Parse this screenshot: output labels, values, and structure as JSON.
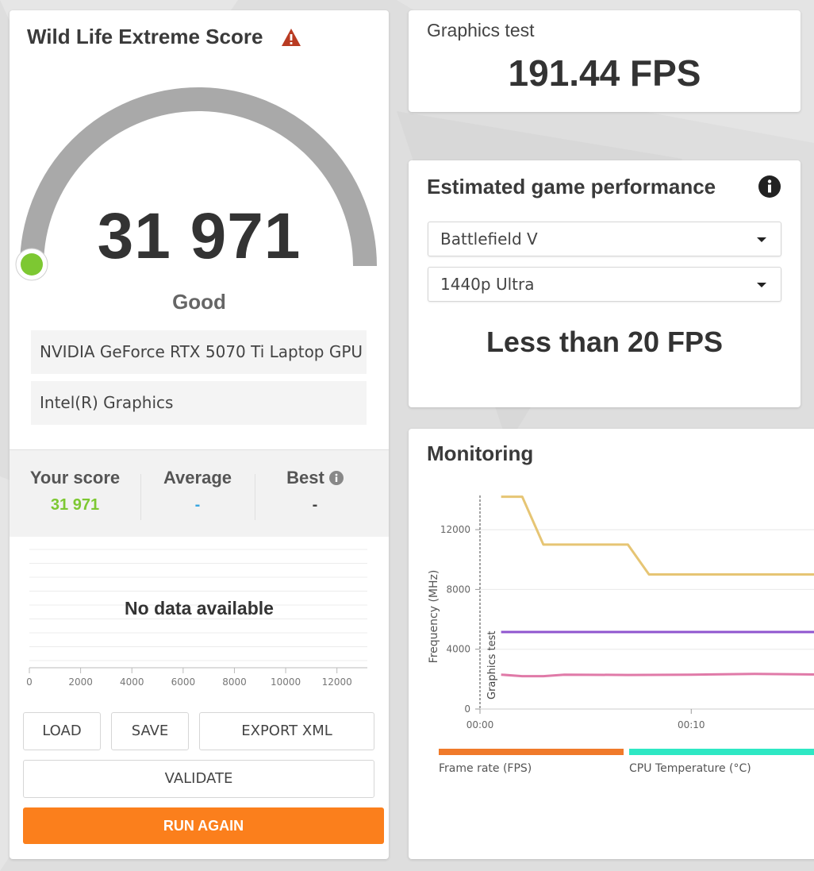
{
  "score_card": {
    "title": "Wild Life Extreme Score",
    "score": "31 971",
    "gauge_fraction": 0.0,
    "rating": "Good",
    "devices": [
      "NVIDIA GeForce RTX 5070 Ti Laptop GPU",
      "Intel(R) Graphics"
    ],
    "stats": {
      "your_score_label": "Your score",
      "your_score_value": "31 971",
      "average_label": "Average",
      "average_value": "-",
      "best_label": "Best",
      "best_value": "-"
    },
    "histogram": {
      "no_data": "No data available",
      "ticks": [
        "0",
        "2000",
        "4000",
        "6000",
        "8000",
        "10000",
        "12000"
      ]
    },
    "buttons": {
      "load": "LOAD",
      "save": "SAVE",
      "export_xml": "EXPORT XML",
      "validate": "VALIDATE",
      "run_again": "RUN AGAIN"
    },
    "colors": {
      "accent": "#fb7f1c",
      "good": "#7dc832",
      "gauge": "#a9a9a9"
    }
  },
  "graphics_test": {
    "label": "Graphics test",
    "value": "191.44 FPS"
  },
  "estimated": {
    "title": "Estimated game performance",
    "game": "Battlefield V",
    "preset": "1440p Ultra",
    "result": "Less than 20 FPS"
  },
  "monitoring": {
    "title": "Monitoring",
    "chart_data": {
      "type": "line",
      "ylabel": "Frequency (MHz)",
      "yticks": [
        0,
        4000,
        8000,
        12000
      ],
      "ylim": [
        0,
        14500
      ],
      "xticks": [
        "00:00",
        "00:10"
      ],
      "xlim": [
        0,
        16.9
      ],
      "marker_label": "Graphics test",
      "series": [
        {
          "color": "#e6c574",
          "x": [
            1,
            2,
            3,
            4,
            7,
            8,
            16.9
          ],
          "y": [
            14200,
            14200,
            11000,
            11000,
            11000,
            9000,
            9000
          ]
        },
        {
          "color": "#8f55cf",
          "x": [
            1,
            16.9
          ],
          "y": [
            5150,
            5150
          ]
        },
        {
          "color": "#e07aa8",
          "x": [
            1,
            2,
            3,
            4,
            7,
            10,
            13,
            16.9
          ],
          "y": [
            2300,
            2200,
            2200,
            2300,
            2280,
            2300,
            2350,
            2300
          ]
        }
      ]
    },
    "legend": [
      {
        "label": "Frame rate (FPS)",
        "color": "#f07a2a"
      },
      {
        "label": "CPU Temperature (°C)",
        "color": "#2ee8c4"
      }
    ]
  }
}
